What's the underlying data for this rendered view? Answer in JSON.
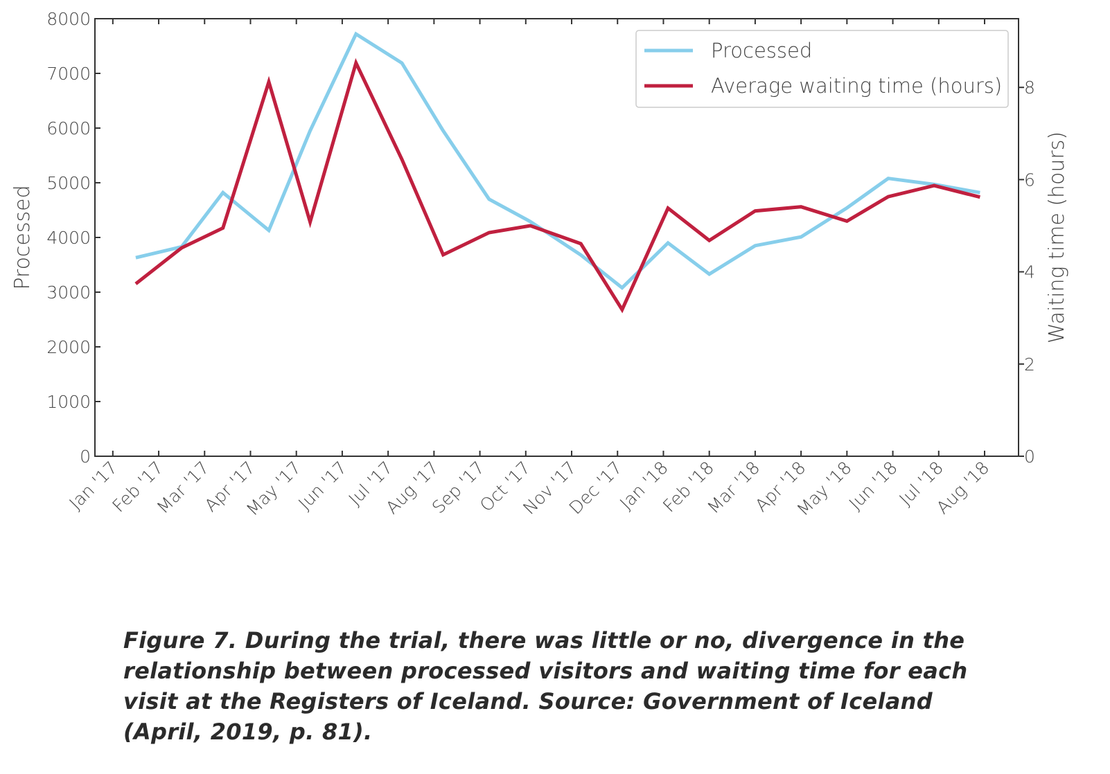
{
  "chart_data": {
    "type": "line",
    "xlabel": null,
    "ylabel": "Processed",
    "y2label": "Waiting time (hours)",
    "x": [
      0.5,
      1.5,
      2.4,
      3.4,
      4.3,
      5.3,
      6.3,
      7.2,
      8.2,
      9.1,
      10.2,
      11.1,
      12.1,
      13.0,
      14.0,
      15.0,
      16.0,
      16.9,
      17.9,
      18.9
    ],
    "series": [
      {
        "name": "Processed",
        "color": "#87ceeb",
        "values": [
          3630,
          3830,
          4820,
          4130,
          5950,
          7720,
          7190,
          5950,
          4700,
          4290,
          3680,
          3080,
          3900,
          3330,
          3850,
          4010,
          4540,
          5080,
          4970,
          4820
        ]
      },
      {
        "name": "Average waiting time (hours)",
        "color": "#c0203f",
        "axis": "y2",
        "values": [
          3.74,
          4.52,
          4.95,
          8.12,
          5.08,
          8.53,
          6.44,
          4.37,
          4.85,
          5.0,
          4.61,
          3.18,
          5.38,
          4.68,
          5.32,
          5.41,
          5.1,
          5.63,
          5.87,
          5.62
        ]
      }
    ],
    "xlim": [
      -0.39,
      19.74
    ],
    "xticks": [
      {
        "value": 0,
        "label": "Jan '17"
      },
      {
        "value": 1,
        "label": "Feb '17"
      },
      {
        "value": 2,
        "label": "Mar '17"
      },
      {
        "value": 3,
        "label": "Apr '17"
      },
      {
        "value": 4,
        "label": "May '17"
      },
      {
        "value": 5,
        "label": "Jun '17"
      },
      {
        "value": 6,
        "label": "Jul '17"
      },
      {
        "value": 7,
        "label": "Aug '17"
      },
      {
        "value": 8,
        "label": "Sep '17"
      },
      {
        "value": 9,
        "label": "Oct '17"
      },
      {
        "value": 10,
        "label": "Nov '17"
      },
      {
        "value": 11,
        "label": "Dec '17"
      },
      {
        "value": 12,
        "label": "Jan '18"
      },
      {
        "value": 13,
        "label": "Feb '18"
      },
      {
        "value": 14,
        "label": "Mar '18"
      },
      {
        "value": 15,
        "label": "Apr '18"
      },
      {
        "value": 16,
        "label": "May '18"
      },
      {
        "value": 17,
        "label": "Jun '18"
      },
      {
        "value": 18,
        "label": "Jul '18"
      },
      {
        "value": 19,
        "label": "Aug '18"
      }
    ],
    "ylim": [
      0,
      8000
    ],
    "yticks": [
      0,
      1000,
      2000,
      3000,
      4000,
      5000,
      6000,
      7000,
      8000
    ],
    "y2lim": [
      0,
      9.49
    ],
    "y2ticks": [
      0,
      2,
      4,
      6,
      8
    ],
    "legend": "upper right",
    "grid": false
  },
  "caption": "Figure 7. During the trial, there was little or no, divergence in the relationship between processed visitors and waiting time for each visit at the Registers of Iceland. Source: Government of Iceland (April, 2019, p. 81)."
}
